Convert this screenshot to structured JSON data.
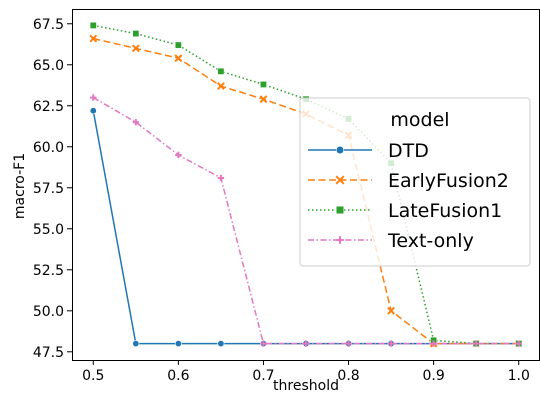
{
  "chart_data": {
    "type": "line",
    "title": "",
    "xlabel": "threshold",
    "ylabel": "macro-F1",
    "xlim": [
      0.475,
      1.025
    ],
    "ylim": [
      47.0,
      68.4
    ],
    "xticks": [
      0.5,
      0.6,
      0.7,
      0.8,
      0.9,
      1.0
    ],
    "xtick_labels": [
      "0.5",
      "0.6",
      "0.7",
      "0.8",
      "0.9",
      "1.0"
    ],
    "yticks": [
      47.5,
      50.0,
      52.5,
      55.0,
      57.5,
      60.0,
      62.5,
      65.0,
      67.5
    ],
    "ytick_labels": [
      "47.5",
      "50.0",
      "52.5",
      "55.0",
      "57.5",
      "60.0",
      "62.5",
      "65.0",
      "67.5"
    ],
    "grid": false,
    "legend_title": "model",
    "legend_position": "center-right",
    "x": [
      0.5,
      0.55,
      0.6,
      0.65,
      0.7,
      0.75,
      0.8,
      0.85,
      0.9,
      0.95,
      1.0
    ],
    "series": [
      {
        "name": "DTD",
        "color": "#1f77b4",
        "dash": "solid",
        "marker": "circle",
        "values": [
          62.2,
          48.0,
          48.0,
          48.0,
          48.0,
          48.0,
          48.0,
          48.0,
          48.0,
          48.0,
          48.0
        ]
      },
      {
        "name": "EarlyFusion2",
        "color": "#ff7f0e",
        "dash": "dashed",
        "marker": "x",
        "values": [
          66.6,
          66.0,
          65.4,
          63.7,
          62.9,
          62.0,
          60.7,
          50.0,
          48.0,
          48.0,
          48.0
        ]
      },
      {
        "name": "LateFusion1",
        "color": "#2ca02c",
        "dash": "dotted",
        "marker": "square",
        "values": [
          67.4,
          66.9,
          66.2,
          64.6,
          63.8,
          62.9,
          61.7,
          59.0,
          48.2,
          48.0,
          48.0
        ]
      },
      {
        "name": "Text-only",
        "color": "#e377c2",
        "dash": "dashdot",
        "marker": "plus",
        "values": [
          63.0,
          61.5,
          59.5,
          58.1,
          48.0,
          48.0,
          48.0,
          48.0,
          48.0,
          48.0,
          48.0
        ]
      }
    ]
  }
}
